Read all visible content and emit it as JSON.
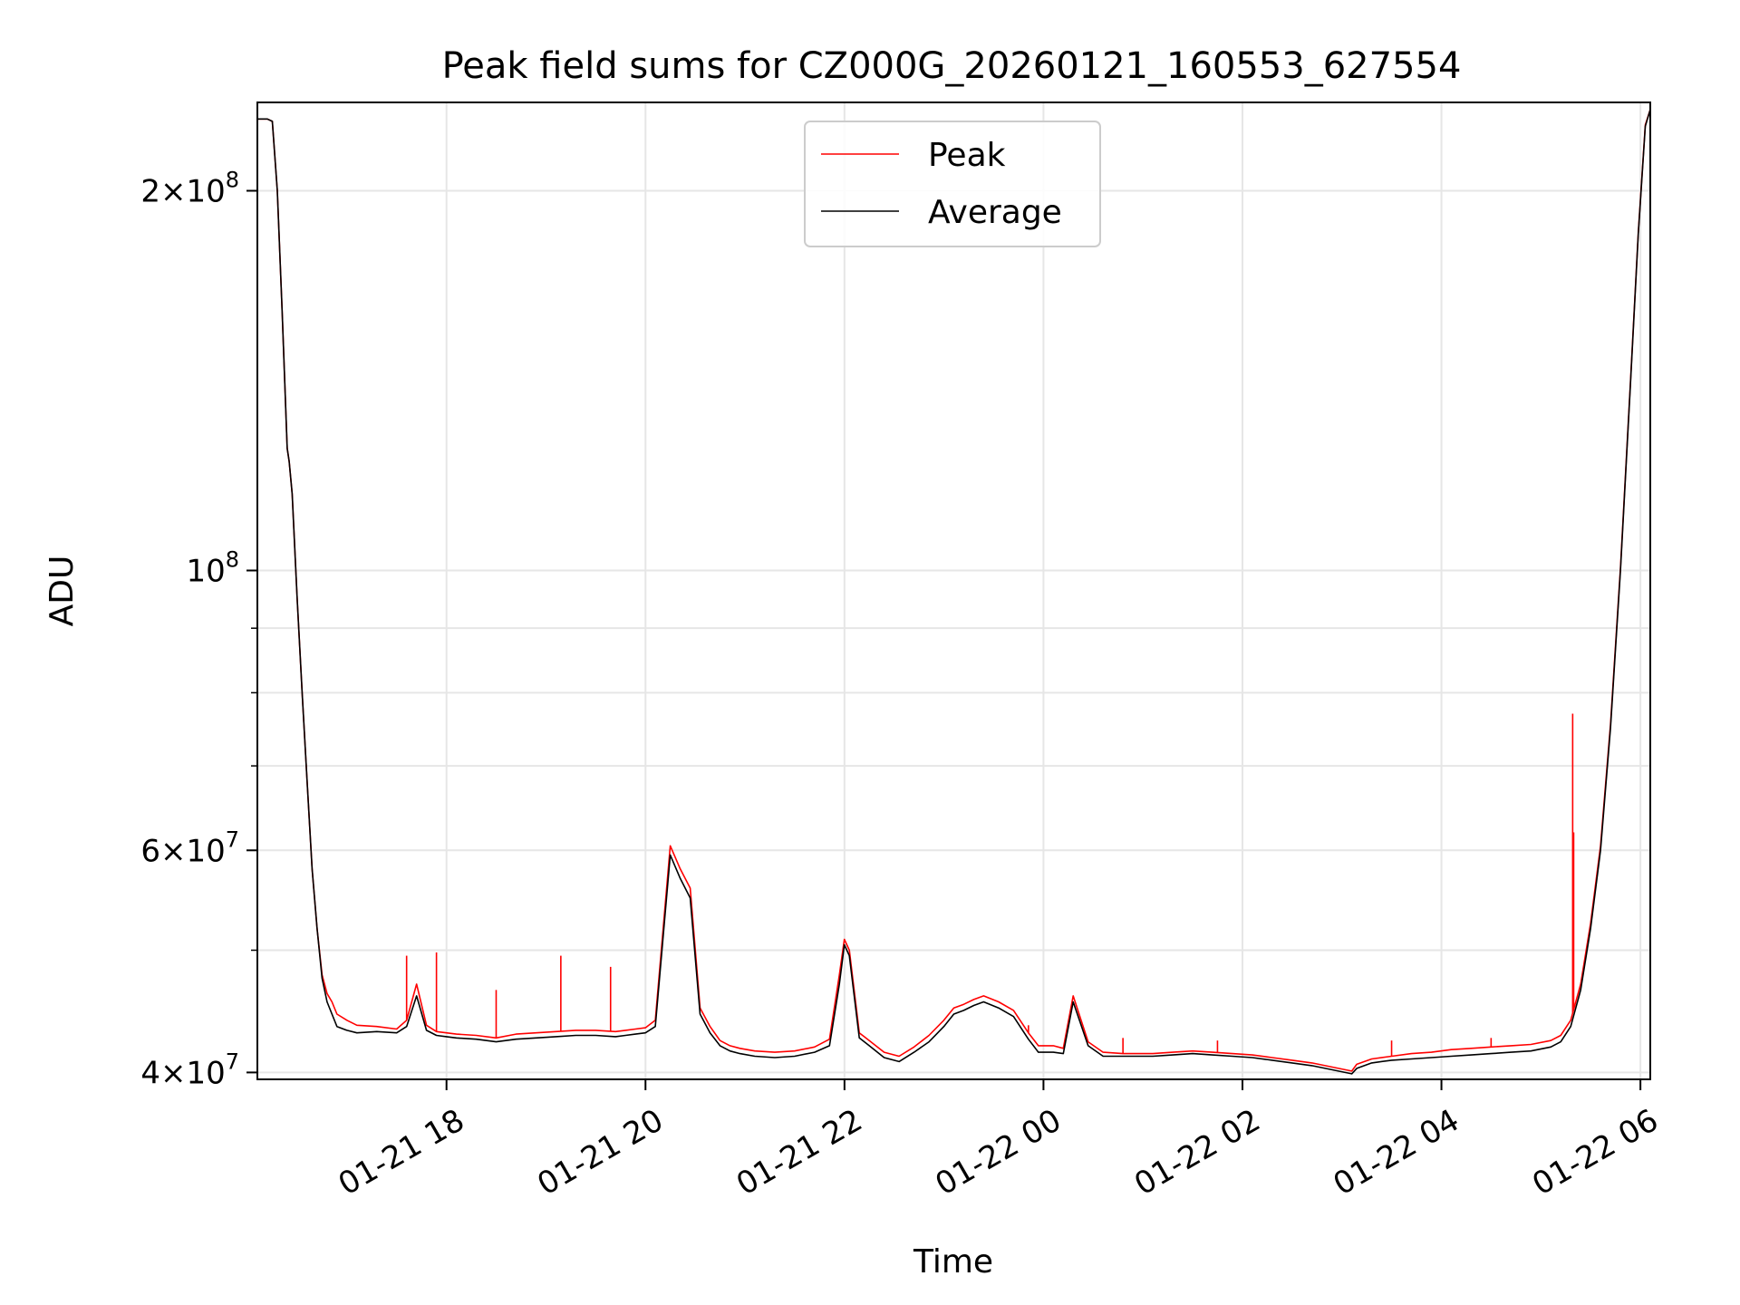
{
  "chart_data": {
    "type": "line",
    "title": "Peak field sums for CZ000G_20260121_160553_627554",
    "xlabel": "Time",
    "ylabel": "ADU",
    "yscale": "log",
    "grid": true,
    "legend_position": "upper-center",
    "x_unit": "hours since 2026-01-21 16:05:53",
    "xlim": [
      0,
      14.0
    ],
    "ylim": [
      39500000,
      235000000
    ],
    "x_ticks": [
      {
        "x": 1.901,
        "label": "01-21 18"
      },
      {
        "x": 3.901,
        "label": "01-21 20"
      },
      {
        "x": 5.901,
        "label": "01-21 22"
      },
      {
        "x": 7.901,
        "label": "01-22 00"
      },
      {
        "x": 9.901,
        "label": "01-22 02"
      },
      {
        "x": 11.901,
        "label": "01-22 04"
      },
      {
        "x": 13.901,
        "label": "01-22 06"
      }
    ],
    "y_ticks": [
      {
        "value": 40000000,
        "mantissa": "4",
        "exponent": "7"
      },
      {
        "value": 60000000,
        "mantissa": "6",
        "exponent": "7"
      },
      {
        "value": 100000000,
        "mantissa": "",
        "exponent": "8"
      },
      {
        "value": 200000000,
        "mantissa": "2",
        "exponent": "8"
      }
    ],
    "y_minor_ticks": [
      50000000,
      70000000,
      80000000,
      90000000
    ],
    "colors": {
      "Peak": "#ff0000",
      "Average": "#000000"
    },
    "series": [
      {
        "name": "Average",
        "x": [
          0,
          0.1,
          0.15,
          0.2,
          0.25,
          0.3,
          0.32,
          0.35,
          0.4,
          0.45,
          0.5,
          0.55,
          0.6,
          0.65,
          0.7,
          0.75,
          0.8,
          0.9,
          1.0,
          1.2,
          1.4,
          1.5,
          1.6,
          1.7,
          1.8,
          1.9,
          2.0,
          2.2,
          2.4,
          2.6,
          2.8,
          3.0,
          3.2,
          3.4,
          3.6,
          3.7,
          3.8,
          3.9,
          4.0,
          4.15,
          4.25,
          4.35,
          4.45,
          4.55,
          4.65,
          4.75,
          4.85,
          5.0,
          5.2,
          5.4,
          5.6,
          5.75,
          5.85,
          5.9,
          5.95,
          6.05,
          6.15,
          6.3,
          6.45,
          6.6,
          6.75,
          6.9,
          7.0,
          7.1,
          7.2,
          7.3,
          7.45,
          7.6,
          7.75,
          7.85,
          8.0,
          8.1,
          8.2,
          8.35,
          8.5,
          8.7,
          9.0,
          9.2,
          9.4,
          9.6,
          9.8,
          10.0,
          10.2,
          10.4,
          10.6,
          10.8,
          11.0,
          11.05,
          11.2,
          11.4,
          11.6,
          11.8,
          12.0,
          12.2,
          12.4,
          12.6,
          12.8,
          13.0,
          13.1,
          13.2,
          13.3,
          13.4,
          13.5,
          13.6,
          13.7,
          13.8,
          13.88,
          13.95,
          14.0
        ],
        "values": [
          228000000,
          228000000,
          227000000,
          200000000,
          160000000,
          125000000,
          122000000,
          115000000,
          95000000,
          80000000,
          68000000,
          58000000,
          52000000,
          47500000,
          45500000,
          44500000,
          43500000,
          43200000,
          43000000,
          43100000,
          43000000,
          43500000,
          46000000,
          43200000,
          42800000,
          42700000,
          42600000,
          42500000,
          42300000,
          42500000,
          42600000,
          42700000,
          42800000,
          42800000,
          42700000,
          42800000,
          42900000,
          43000000,
          43500000,
          59500000,
          57000000,
          55000000,
          44500000,
          43000000,
          42000000,
          41600000,
          41400000,
          41200000,
          41100000,
          41200000,
          41500000,
          42000000,
          47000000,
          50500000,
          49500000,
          42600000,
          42000000,
          41100000,
          40800000,
          41500000,
          42300000,
          43500000,
          44500000,
          44800000,
          45200000,
          45500000,
          45000000,
          44300000,
          42500000,
          41500000,
          41500000,
          41400000,
          45500000,
          42000000,
          41200000,
          41200000,
          41200000,
          41300000,
          41400000,
          41300000,
          41200000,
          41100000,
          40900000,
          40700000,
          40500000,
          40200000,
          39900000,
          40300000,
          40700000,
          40900000,
          41000000,
          41100000,
          41200000,
          41300000,
          41400000,
          41500000,
          41600000,
          41900000,
          42300000,
          43500000,
          46500000,
          52000000,
          60000000,
          75000000,
          100000000,
          140000000,
          185000000,
          225000000,
          232000000
        ]
      },
      {
        "name": "Peak",
        "x": [
          0,
          0.1,
          0.15,
          0.2,
          0.25,
          0.3,
          0.32,
          0.35,
          0.4,
          0.45,
          0.5,
          0.55,
          0.6,
          0.65,
          0.7,
          0.75,
          0.8,
          0.9,
          1.0,
          1.2,
          1.4,
          1.5,
          1.6,
          1.7,
          1.8,
          1.9,
          2.0,
          2.2,
          2.4,
          2.6,
          2.8,
          3.0,
          3.2,
          3.4,
          3.6,
          3.7,
          3.8,
          3.9,
          4.0,
          4.15,
          4.25,
          4.35,
          4.45,
          4.55,
          4.65,
          4.75,
          4.85,
          5.0,
          5.2,
          5.4,
          5.6,
          5.75,
          5.85,
          5.9,
          5.95,
          6.05,
          6.15,
          6.3,
          6.45,
          6.6,
          6.75,
          6.9,
          7.0,
          7.1,
          7.2,
          7.3,
          7.45,
          7.6,
          7.75,
          7.85,
          8.0,
          8.1,
          8.2,
          8.35,
          8.5,
          8.7,
          9.0,
          9.2,
          9.4,
          9.6,
          9.8,
          10.0,
          10.2,
          10.4,
          10.6,
          10.8,
          11.0,
          11.05,
          11.2,
          11.4,
          11.6,
          11.8,
          12.0,
          12.2,
          12.4,
          12.6,
          12.8,
          13.0,
          13.1,
          13.2,
          13.3,
          13.4,
          13.5,
          13.6,
          13.7,
          13.8,
          13.88,
          13.95,
          14.0
        ],
        "values": [
          228000000,
          228000000,
          227000000,
          200000000,
          160000000,
          125000000,
          122000000,
          115000000,
          95000000,
          80000000,
          68000000,
          58000000,
          52000000,
          47800000,
          46200000,
          45500000,
          44500000,
          44000000,
          43600000,
          43500000,
          43300000,
          44000000,
          47000000,
          43600000,
          43100000,
          43000000,
          42900000,
          42800000,
          42600000,
          42900000,
          43000000,
          43100000,
          43200000,
          43200000,
          43100000,
          43200000,
          43300000,
          43400000,
          44000000,
          60500000,
          58000000,
          56000000,
          45000000,
          43500000,
          42400000,
          42000000,
          41800000,
          41600000,
          41500000,
          41600000,
          41900000,
          42500000,
          47800000,
          51000000,
          50000000,
          43000000,
          42400000,
          41500000,
          41200000,
          41900000,
          42800000,
          44000000,
          45000000,
          45300000,
          45700000,
          46000000,
          45500000,
          44800000,
          43000000,
          42000000,
          42000000,
          41800000,
          46000000,
          42300000,
          41500000,
          41400000,
          41400000,
          41500000,
          41600000,
          41500000,
          41400000,
          41300000,
          41100000,
          40900000,
          40700000,
          40400000,
          40100000,
          40600000,
          41000000,
          41200000,
          41400000,
          41500000,
          41700000,
          41800000,
          41900000,
          42000000,
          42100000,
          42400000,
          42800000,
          44000000,
          47000000,
          52500000,
          60500000,
          75500000,
          100500000,
          140500000,
          185500000,
          225500000,
          232000000
        ],
        "spikes": [
          {
            "x": 1.5,
            "value": 49500000
          },
          {
            "x": 1.8,
            "value": 49800000
          },
          {
            "x": 2.4,
            "value": 46500000
          },
          {
            "x": 3.05,
            "value": 49500000
          },
          {
            "x": 3.55,
            "value": 48500000
          },
          {
            "x": 7.75,
            "value": 43600000
          },
          {
            "x": 8.7,
            "value": 42600000
          },
          {
            "x": 9.65,
            "value": 42400000
          },
          {
            "x": 11.4,
            "value": 42400000
          },
          {
            "x": 12.4,
            "value": 42600000
          },
          {
            "x": 13.22,
            "value": 77000000
          },
          {
            "x": 13.23,
            "value": 62000000
          }
        ]
      }
    ]
  }
}
